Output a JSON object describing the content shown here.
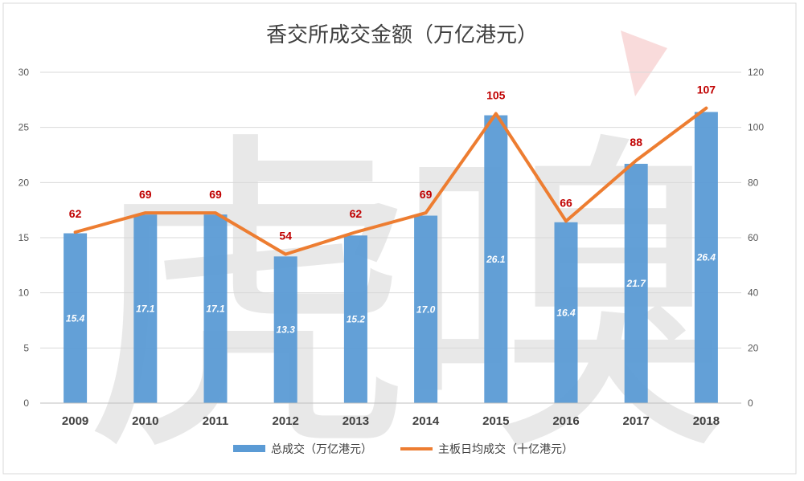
{
  "chart_data": {
    "type": "bar",
    "title": "香交所成交金额（万亿港元）",
    "categories": [
      "2009",
      "2010",
      "2011",
      "2012",
      "2013",
      "2014",
      "2015",
      "2016",
      "2017",
      "2018"
    ],
    "series": [
      {
        "name": "总成交（万亿港元）",
        "type": "bar",
        "axis": "left",
        "color": "#5b9bd5",
        "values": [
          15.4,
          17.1,
          17.1,
          13.3,
          15.2,
          17.0,
          26.1,
          16.4,
          21.7,
          26.4
        ],
        "labels": [
          "15.4",
          "17.1",
          "17.1",
          "13.3",
          "15.2",
          "17.0",
          "26.1",
          "16.4",
          "21.7",
          "26.4"
        ]
      },
      {
        "name": "主板日均成交（十亿港元）",
        "type": "line",
        "axis": "right",
        "color": "#ed7d31",
        "values": [
          62,
          69,
          69,
          54,
          62,
          69,
          105,
          66,
          88,
          107
        ],
        "labels": [
          "62",
          "69",
          "69",
          "54",
          "62",
          "69",
          "105",
          "66",
          "88",
          "107"
        ]
      }
    ],
    "ylim": [
      0,
      30
    ],
    "yticks": [
      "0",
      "5",
      "10",
      "15",
      "20",
      "25",
      "30"
    ],
    "y2lim": [
      0,
      120
    ],
    "y2ticks": [
      "0",
      "20",
      "40",
      "60",
      "80",
      "100",
      "120"
    ],
    "grid": true,
    "legend": "bottom",
    "label_color": "#c00000",
    "watermark": "虎嗅"
  }
}
